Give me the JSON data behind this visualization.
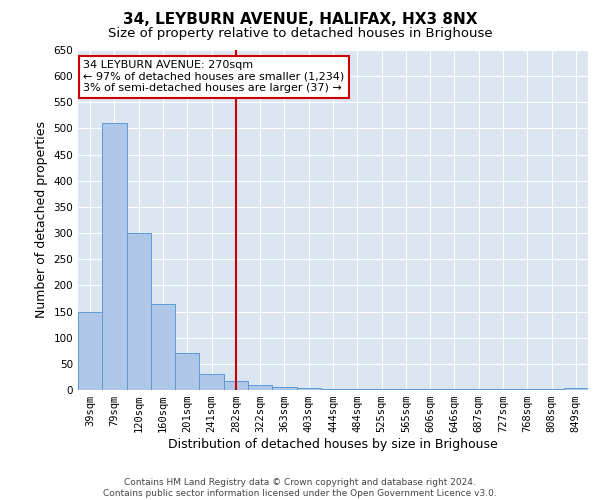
{
  "title": "34, LEYBURN AVENUE, HALIFAX, HX3 8NX",
  "subtitle": "Size of property relative to detached houses in Brighouse",
  "xlabel": "Distribution of detached houses by size in Brighouse",
  "ylabel": "Number of detached properties",
  "bar_color": "#aec6e8",
  "bar_edge_color": "#5b9bd5",
  "categories": [
    "39sqm",
    "79sqm",
    "120sqm",
    "160sqm",
    "201sqm",
    "241sqm",
    "282sqm",
    "322sqm",
    "363sqm",
    "403sqm",
    "444sqm",
    "484sqm",
    "525sqm",
    "565sqm",
    "606sqm",
    "646sqm",
    "687sqm",
    "727sqm",
    "768sqm",
    "808sqm",
    "849sqm"
  ],
  "values": [
    150,
    510,
    300,
    165,
    70,
    30,
    18,
    10,
    5,
    3,
    1,
    1,
    1,
    1,
    1,
    1,
    1,
    1,
    1,
    1,
    3
  ],
  "vline_x": 6.0,
  "vline_color": "#cc0000",
  "annotation_text": "34 LEYBURN AVENUE: 270sqm\n← 97% of detached houses are smaller (1,234)\n3% of semi-detached houses are larger (37) →",
  "annotation_box_color": "#ffffff",
  "annotation_box_edge": "#cc0000",
  "ylim": [
    0,
    650
  ],
  "yticks": [
    0,
    50,
    100,
    150,
    200,
    250,
    300,
    350,
    400,
    450,
    500,
    550,
    600,
    650
  ],
  "plot_background": "#dce6f1",
  "footer_line1": "Contains HM Land Registry data © Crown copyright and database right 2024.",
  "footer_line2": "Contains public sector information licensed under the Open Government Licence v3.0.",
  "title_fontsize": 11,
  "subtitle_fontsize": 9.5,
  "axis_label_fontsize": 9,
  "tick_fontsize": 7.5,
  "annotation_fontsize": 8,
  "footer_fontsize": 6.5
}
